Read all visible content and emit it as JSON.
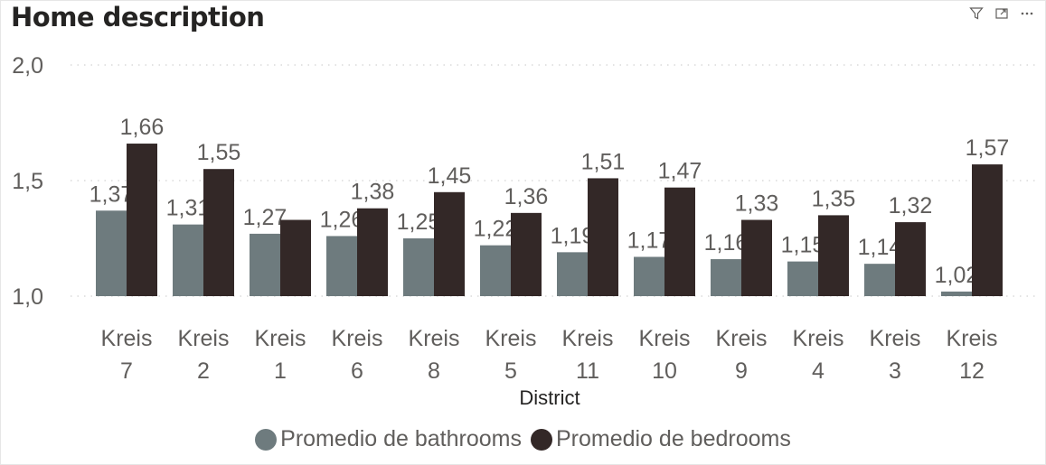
{
  "visual": {
    "title": "Home description"
  },
  "header_icons": [
    "filter-icon",
    "focus-mode-icon",
    "more-options-icon"
  ],
  "colors": {
    "bathrooms": "#6e7b7e",
    "bedrooms": "#332827",
    "grid": "#dadada",
    "text": "#605e5c"
  },
  "chart_data": {
    "type": "bar",
    "title": "Home description",
    "xlabel": "District",
    "ylabel": "",
    "ylim": [
      1.0,
      2.0
    ],
    "yticks": [
      "1,0",
      "1,5",
      "2,0"
    ],
    "categories": [
      [
        "Kreis",
        "7"
      ],
      [
        "Kreis",
        "2"
      ],
      [
        "Kreis",
        "1"
      ],
      [
        "Kreis",
        "6"
      ],
      [
        "Kreis",
        "8"
      ],
      [
        "Kreis",
        "5"
      ],
      [
        "Kreis",
        "11"
      ],
      [
        "Kreis",
        "10"
      ],
      [
        "Kreis",
        "9"
      ],
      [
        "Kreis",
        "4"
      ],
      [
        "Kreis",
        "3"
      ],
      [
        "Kreis",
        "12"
      ]
    ],
    "series": [
      {
        "name": "Promedio de bathrooms",
        "values": [
          1.37,
          1.31,
          1.27,
          1.26,
          1.25,
          1.22,
          1.19,
          1.17,
          1.16,
          1.15,
          1.14,
          1.02
        ]
      },
      {
        "name": "Promedio de bedrooms",
        "values": [
          1.66,
          1.55,
          1.33,
          1.38,
          1.45,
          1.36,
          1.51,
          1.47,
          1.33,
          1.35,
          1.32,
          1.57
        ]
      }
    ],
    "data_labels": [
      [
        "1,37",
        "1,31",
        "1,27",
        "1,26",
        "1,25",
        "1,22",
        "1,19",
        "1,17",
        "1,16",
        "1,15",
        "1,14",
        "1,02"
      ],
      [
        "1,66",
        "1,55",
        "",
        "1,38",
        "1,45",
        "1,36",
        "1,51",
        "1,47",
        "1,33",
        "1,35",
        "1,32",
        "1,57"
      ]
    ],
    "grid": true,
    "legend_position": "bottom"
  }
}
